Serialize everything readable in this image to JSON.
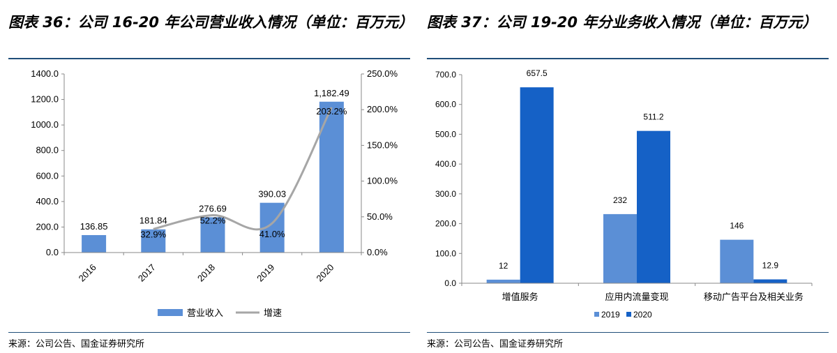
{
  "left": {
    "title": "图表 36：公司 16-20 年公司营业收入情况（单位：百万元）",
    "source": "来源：公司公告、国金证券研究所",
    "chart_data": {
      "type": "bar",
      "categories": [
        "2016",
        "2017",
        "2018",
        "2019",
        "2020"
      ],
      "series": [
        {
          "name": "营业收入",
          "values": [
            136.85,
            181.84,
            276.69,
            390.03,
            1182.49
          ],
          "labels": [
            "136.85",
            "181.84",
            "276.69",
            "390.03",
            "1,182.49"
          ],
          "color": "#5b8fd6"
        },
        {
          "name": "增速",
          "type": "line",
          "axis": "right",
          "values": [
            null,
            32.9,
            52.2,
            41.0,
            203.2
          ],
          "labels": [
            "",
            "32.9%",
            "52.2%",
            "41.0%",
            "203.2%"
          ],
          "color": "#a6a6a6"
        }
      ],
      "ylim": [
        0,
        1400
      ],
      "y_ticks": [
        "0.0",
        "200.0",
        "400.0",
        "600.0",
        "800.0",
        "1000.0",
        "1200.0",
        "1400.0"
      ],
      "y2lim": [
        0,
        250
      ],
      "y2_ticks": [
        "0.0%",
        "50.0%",
        "100.0%",
        "150.0%",
        "200.0%",
        "250.0%"
      ],
      "legend": "bottom"
    }
  },
  "right": {
    "title": "图表 37：公司 19-20 年分业务收入情况（单位：百万元）",
    "source": "来源：公司公告、国金证券研究所",
    "chart_data": {
      "type": "bar",
      "categories": [
        "增值服务",
        "应用内流量变现",
        "移动广告平台及相关业务"
      ],
      "series": [
        {
          "name": "2019",
          "values": [
            12,
            232,
            146
          ],
          "labels": [
            "12",
            "232",
            "146"
          ],
          "color": "#5b8fd6"
        },
        {
          "name": "2020",
          "values": [
            657.5,
            511.2,
            12.9
          ],
          "labels": [
            "657.5",
            "511.2",
            "12.9"
          ],
          "color": "#1561c6"
        }
      ],
      "ylim": [
        0,
        700
      ],
      "y_ticks": [
        "0.0",
        "100.0",
        "200.0",
        "300.0",
        "400.0",
        "500.0",
        "600.0",
        "700.0"
      ],
      "legend": "bottom"
    }
  }
}
